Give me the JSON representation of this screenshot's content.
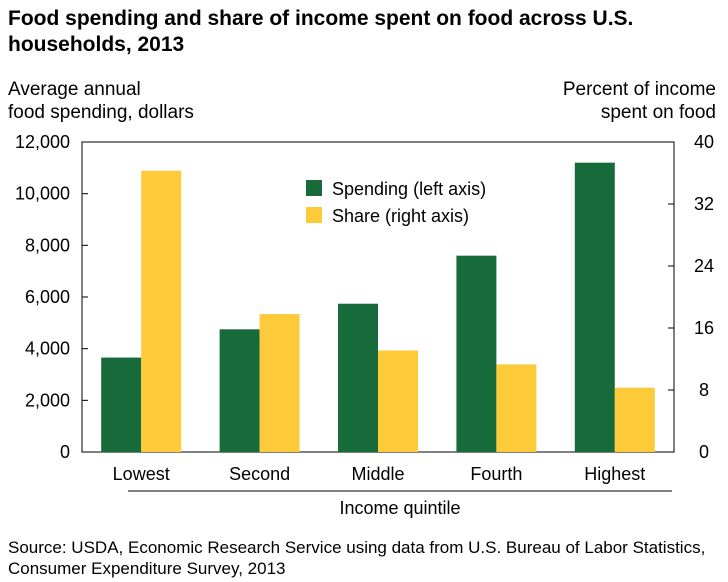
{
  "title": "Food spending and share of income spent on food across U.S. households, 2013",
  "source": "Source: USDA, Economic Research Service using data from U.S. Bureau of Labor Statistics, Consumer Expenditure Survey, 2013",
  "chart_data": {
    "type": "bar",
    "title": "Food spending and share of income spent on food across U.S. households, 2013",
    "categories": [
      "Lowest",
      "Second",
      "Middle",
      "Fourth",
      "Highest"
    ],
    "xlabel": "Income quintile",
    "ylabel_left_lines": [
      "Average annual",
      "food spending, dollars"
    ],
    "ylabel_right_lines": [
      "Percent of income",
      "spent on food"
    ],
    "y_left": {
      "min": 0,
      "max": 12000,
      "ticks": [
        0,
        2000,
        4000,
        6000,
        8000,
        10000,
        12000
      ],
      "tick_labels": [
        "0",
        "2,000",
        "4,000",
        "6,000",
        "8,000",
        "10,000",
        "12,000"
      ]
    },
    "y_right": {
      "min": 0,
      "max": 40,
      "ticks": [
        0,
        8,
        16,
        24,
        32,
        40
      ],
      "tick_labels": [
        "0",
        "8",
        "16",
        "24",
        "32",
        "40"
      ]
    },
    "series": [
      {
        "name": "Spending (left axis)",
        "axis": "left",
        "color": "#176b3a",
        "values": [
          3655,
          4750,
          5740,
          7600,
          11200
        ]
      },
      {
        "name": "Share (right axis)",
        "axis": "right",
        "color": "#fdcb3a",
        "values": [
          36.3,
          17.8,
          13.1,
          11.3,
          8.3
        ]
      }
    ],
    "legend_position": "top-center",
    "grid": false
  }
}
